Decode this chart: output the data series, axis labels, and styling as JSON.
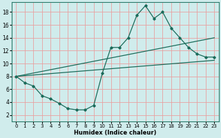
{
  "xlabel": "Humidex (Indice chaleur)",
  "xlim": [
    -0.5,
    23.5
  ],
  "ylim": [
    1.0,
    19.5
  ],
  "yticks": [
    2,
    4,
    6,
    8,
    10,
    12,
    14,
    16,
    18
  ],
  "xticks": [
    0,
    1,
    2,
    3,
    4,
    5,
    6,
    7,
    8,
    9,
    10,
    11,
    12,
    13,
    14,
    15,
    16,
    17,
    18,
    19,
    20,
    21,
    22,
    23
  ],
  "background_color": "#d0ecec",
  "grid_color": "#e8a0a0",
  "line_color": "#1a6b5a",
  "line1_x": [
    0,
    1,
    2,
    3,
    4,
    5,
    6,
    7,
    8,
    9,
    10,
    11,
    12,
    13,
    14,
    15,
    16,
    17,
    18,
    19,
    20,
    21,
    22,
    23
  ],
  "line1_y": [
    8.0,
    7.0,
    6.5,
    5.0,
    4.5,
    3.8,
    3.0,
    2.8,
    2.8,
    3.5,
    8.5,
    12.5,
    12.5,
    14.0,
    17.5,
    19.0,
    17.0,
    18.0,
    15.5,
    14.0,
    12.5,
    11.5,
    11.0,
    11.0
  ],
  "line2_x": [
    0,
    23
  ],
  "line2_y": [
    8.0,
    14.0
  ],
  "line3_x": [
    0,
    23
  ],
  "line3_y": [
    8.0,
    10.5
  ]
}
